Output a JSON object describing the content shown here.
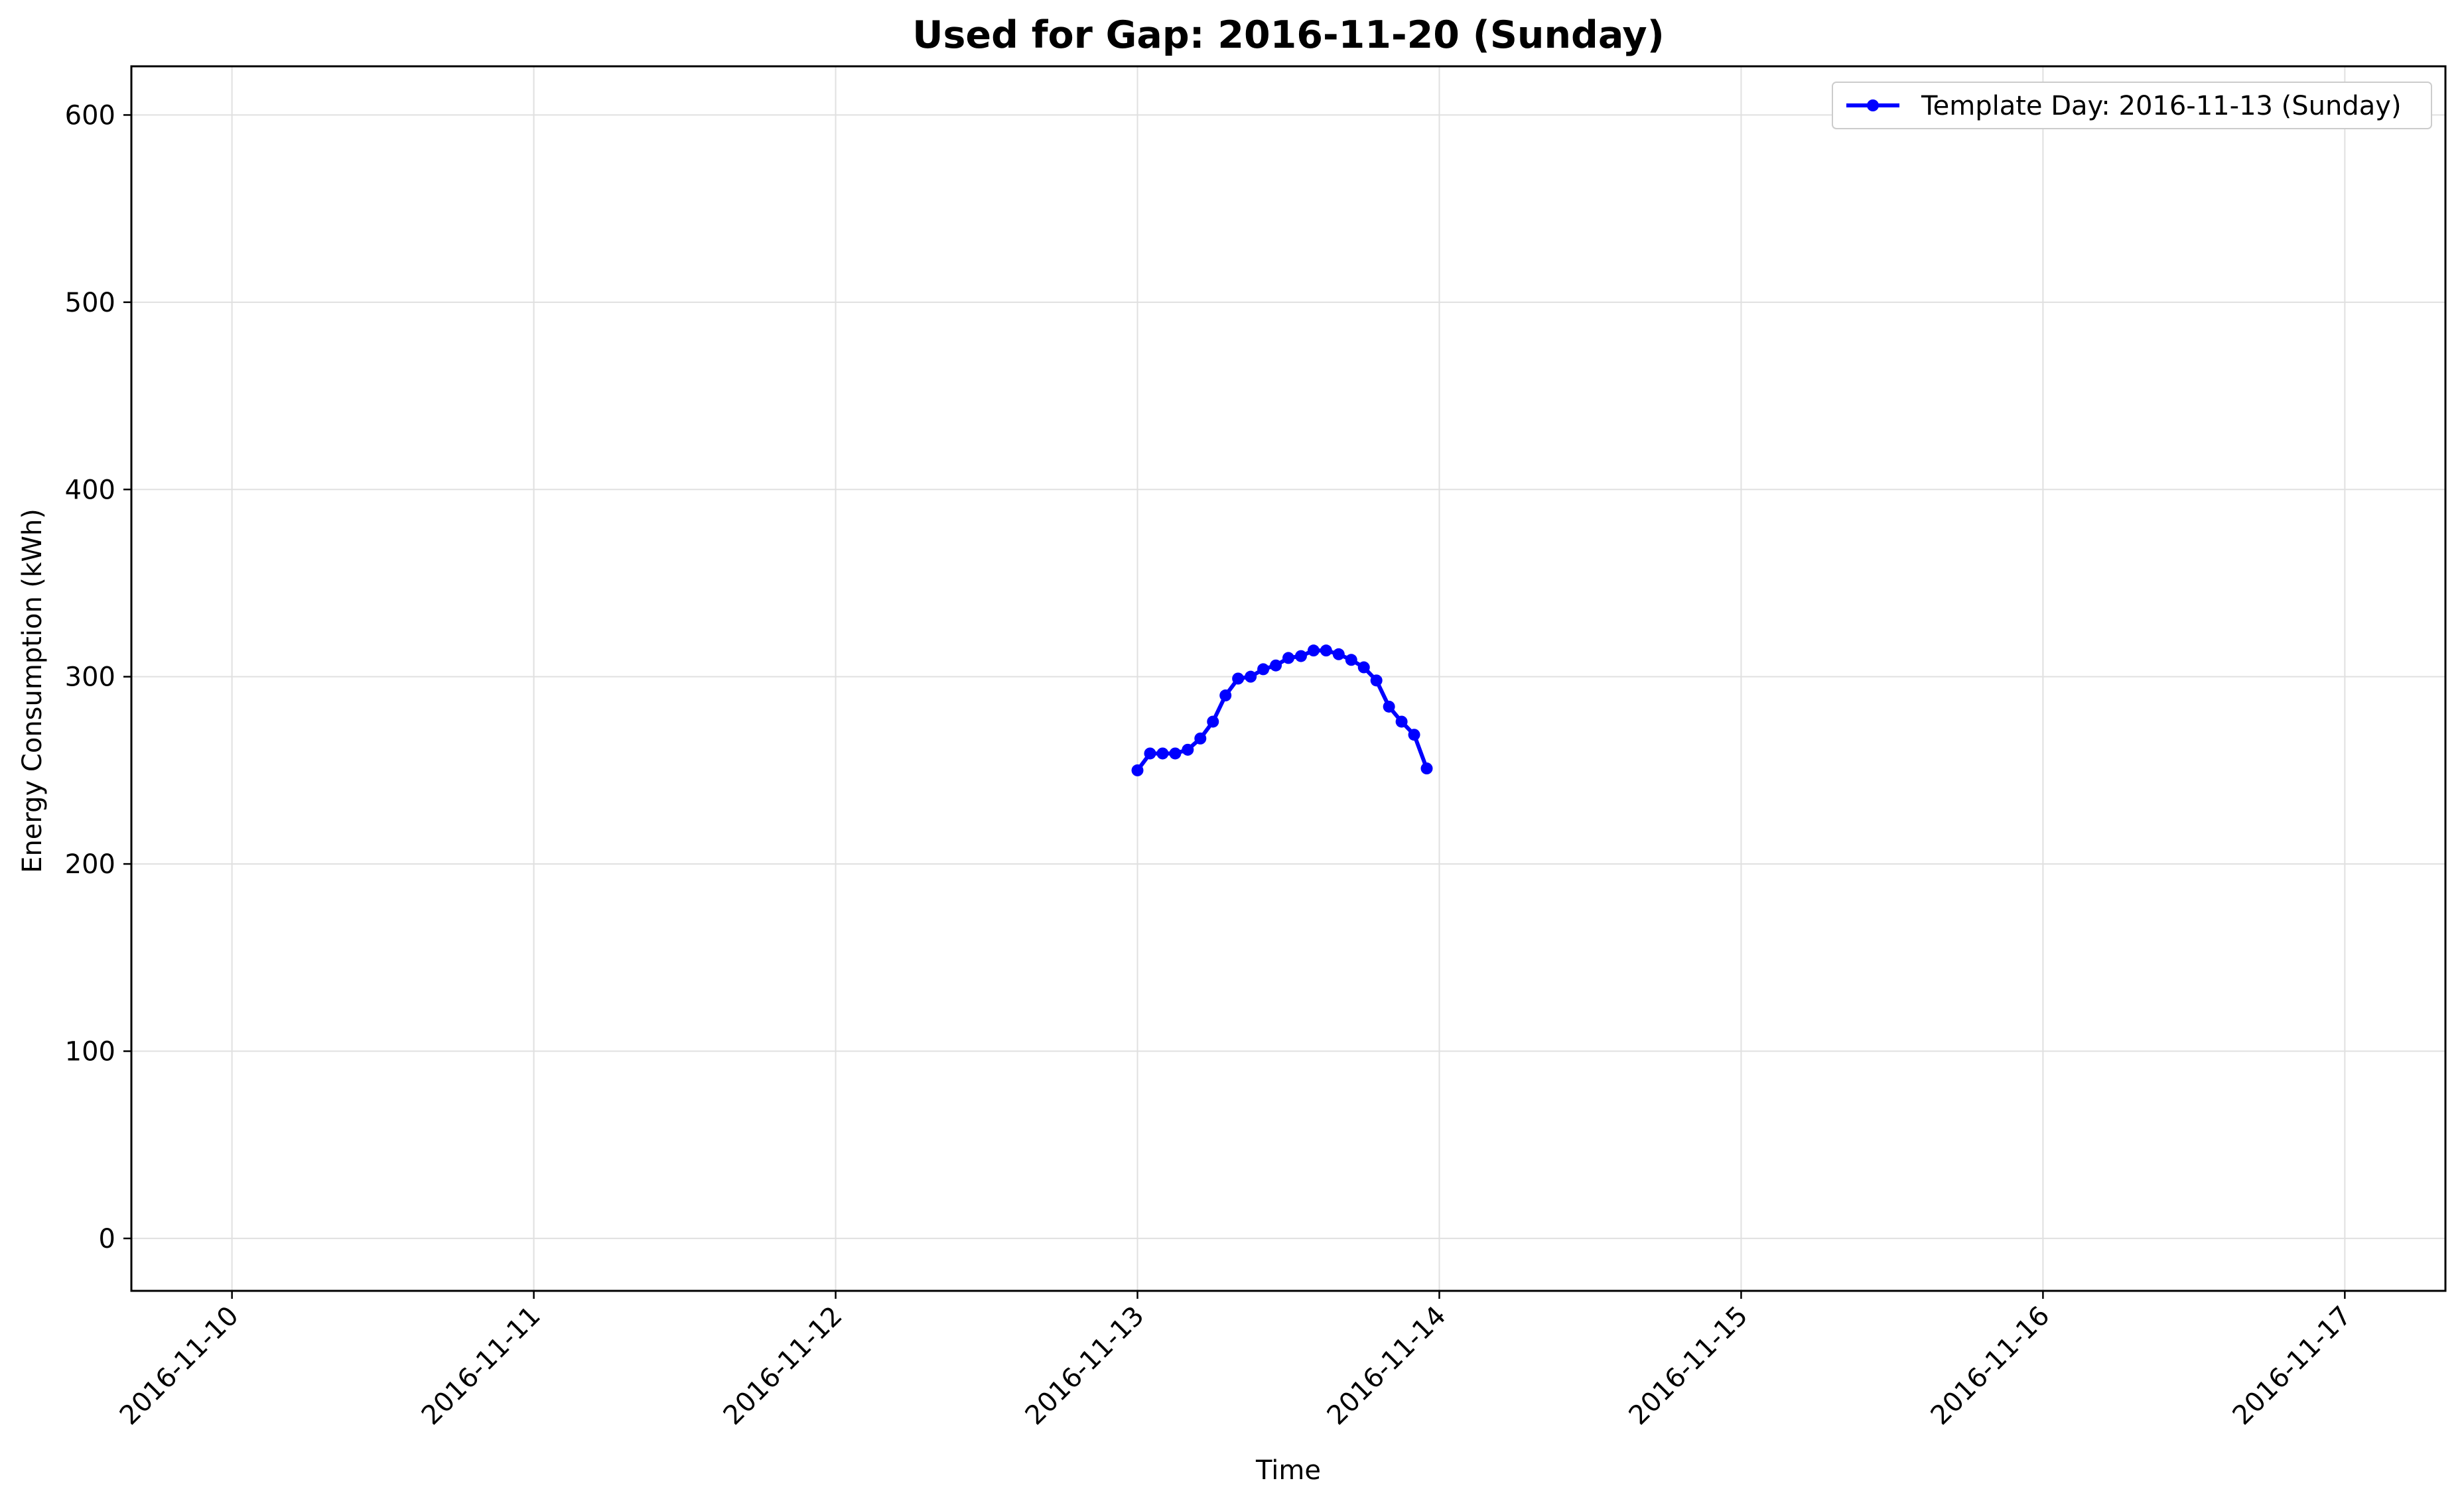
{
  "chart_data": {
    "type": "line",
    "title": "Used for Gap: 2016-11-20 (Sunday)",
    "xlabel": "Time",
    "ylabel": "Energy Consumption (kWh)",
    "xlim": [
      "2016-11-09 16:00",
      "2016-11-17 08:00"
    ],
    "ylim": [
      -28,
      626
    ],
    "x_ticks": [
      "2016-11-10",
      "2016-11-11",
      "2016-11-12",
      "2016-11-13",
      "2016-11-14",
      "2016-11-15",
      "2016-11-16",
      "2016-11-17"
    ],
    "y_ticks": [
      0,
      100,
      200,
      300,
      400,
      500,
      600
    ],
    "x_tick_rotation_deg": 45,
    "grid": true,
    "legend_position": "top-right",
    "series": [
      {
        "name": "Template Day: 2016-11-13 (Sunday)",
        "color": "#0000ff",
        "marker": "circle",
        "x": [
          "2016-11-13 00:00",
          "2016-11-13 01:00",
          "2016-11-13 02:00",
          "2016-11-13 03:00",
          "2016-11-13 04:00",
          "2016-11-13 05:00",
          "2016-11-13 06:00",
          "2016-11-13 07:00",
          "2016-11-13 08:00",
          "2016-11-13 09:00",
          "2016-11-13 10:00",
          "2016-11-13 11:00",
          "2016-11-13 12:00",
          "2016-11-13 13:00",
          "2016-11-13 14:00",
          "2016-11-13 15:00",
          "2016-11-13 16:00",
          "2016-11-13 17:00",
          "2016-11-13 18:00",
          "2016-11-13 19:00",
          "2016-11-13 20:00",
          "2016-11-13 21:00",
          "2016-11-13 22:00",
          "2016-11-13 23:00"
        ],
        "y": [
          250,
          259,
          259,
          259,
          261,
          267,
          276,
          290,
          299,
          300,
          304,
          306,
          310,
          311,
          314,
          314,
          312,
          309,
          305,
          298,
          284,
          276,
          269,
          251
        ]
      }
    ]
  }
}
